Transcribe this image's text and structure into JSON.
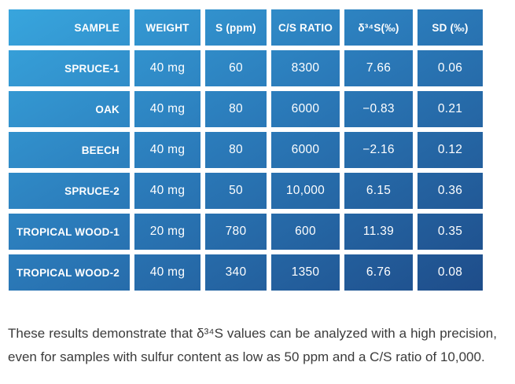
{
  "table": {
    "columns": [
      "SAMPLE",
      "WEIGHT",
      "S (ppm)",
      "C/S RATIO",
      "δ³⁴S(‰)",
      "SD (‰)"
    ],
    "rows": [
      {
        "sample": "SPRUCE-1",
        "weight": "40 mg",
        "s_ppm": "60",
        "cs_ratio": "8300",
        "d34s": "7.66",
        "sd": "0.06"
      },
      {
        "sample": "OAK",
        "weight": "40 mg",
        "s_ppm": "80",
        "cs_ratio": "6000",
        "d34s": "−0.83",
        "sd": "0.21"
      },
      {
        "sample": "BEECH",
        "weight": "40 mg",
        "s_ppm": "80",
        "cs_ratio": "6000",
        "d34s": "−2.16",
        "sd": "0.12"
      },
      {
        "sample": "SPRUCE-2",
        "weight": "40 mg",
        "s_ppm": "50",
        "cs_ratio": "10,000",
        "d34s": "6.15",
        "sd": "0.36"
      },
      {
        "sample": "TROPICAL WOOD-1",
        "weight": "20 mg",
        "s_ppm": "780",
        "cs_ratio": "600",
        "d34s": "11.39",
        "sd": "0.35"
      },
      {
        "sample": "TROPICAL WOOD-2",
        "weight": "40 mg",
        "s_ppm": "340",
        "cs_ratio": "1350",
        "d34s": "6.76",
        "sd": "0.08"
      }
    ]
  },
  "caption": {
    "text": "These results demonstrate that δ³⁴S values can be analyzed with a high precision, even for samples with sulfur content as low as 50 ppm and a C/S ratio of 10,000."
  },
  "colors": {
    "gradient_start": "#38A6DE",
    "gradient_end": "#1E4C89",
    "gridline": "#FFFFFF",
    "caption_text": "#3B3B3B"
  }
}
